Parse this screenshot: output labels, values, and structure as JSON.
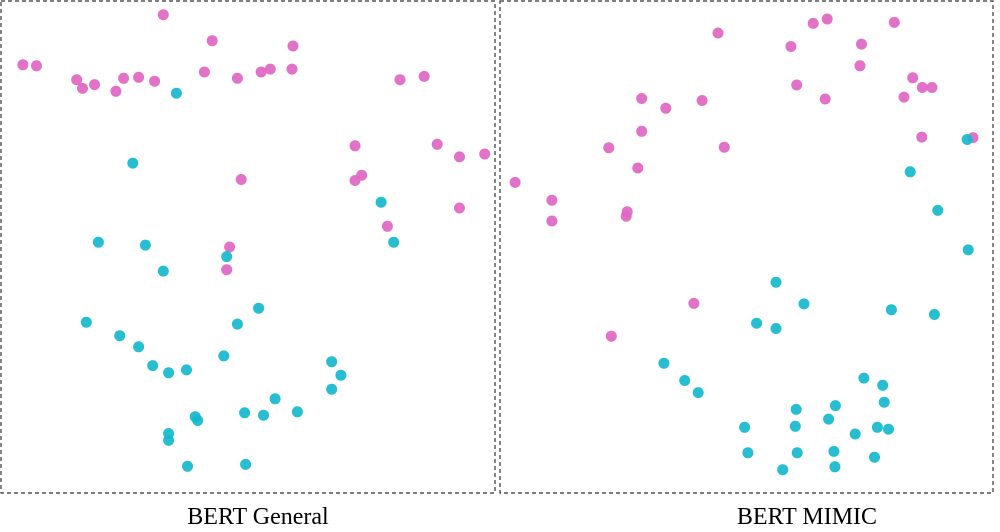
{
  "colors": {
    "clinical": "#e066c2",
    "non_clinical": "#14b9cc"
  },
  "chart_data": [
    {
      "type": "scatter",
      "title": "BERT General",
      "xlabel": "",
      "ylabel": "",
      "grid": false,
      "legend": "none",
      "xlim": [
        0,
        100
      ],
      "ylim": [
        0,
        100
      ],
      "series": [
        {
          "color": "#e066c2",
          "points": [
            [
              3.5,
              87.8
            ],
            [
              6.3,
              87.6
            ],
            [
              14.6,
              84.7
            ],
            [
              15.8,
              82.9
            ],
            [
              18.3,
              83.7
            ],
            [
              22.7,
              82.3
            ],
            [
              24.3,
              85.0
            ],
            [
              27.4,
              85.2
            ],
            [
              30.7,
              84.4
            ],
            [
              32.5,
              98.2
            ],
            [
              42.6,
              92.8
            ],
            [
              41.0,
              86.3
            ],
            [
              47.8,
              85.0
            ],
            [
              52.7,
              86.3
            ],
            [
              54.6,
              86.9
            ],
            [
              59.1,
              86.9
            ],
            [
              59.3,
              91.7
            ],
            [
              72.1,
              71.0
            ],
            [
              73.5,
              64.9
            ],
            [
              72.1,
              63.8
            ],
            [
              81.4,
              84.7
            ],
            [
              86.4,
              85.4
            ],
            [
              89.1,
              71.3
            ],
            [
              93.7,
              68.7
            ],
            [
              98.9,
              69.3
            ],
            [
              93.7,
              58.1
            ],
            [
              78.8,
              54.3
            ],
            [
              48.6,
              64.0
            ],
            [
              46.2,
              50.0
            ],
            [
              45.6,
              45.3
            ]
          ]
        },
        {
          "color": "#14b9cc",
          "points": [
            [
              35.2,
              81.9
            ],
            [
              26.2,
              67.4
            ],
            [
              19.1,
              51.0
            ],
            [
              28.8,
              50.4
            ],
            [
              32.5,
              45.0
            ],
            [
              45.6,
              48.0
            ],
            [
              80.1,
              51.0
            ],
            [
              77.5,
              59.3
            ],
            [
              16.6,
              34.4
            ],
            [
              23.5,
              31.6
            ],
            [
              27.4,
              29.3
            ],
            [
              30.3,
              25.4
            ],
            [
              33.6,
              23.9
            ],
            [
              37.3,
              24.5
            ],
            [
              52.2,
              37.3
            ],
            [
              47.8,
              34.0
            ],
            [
              45.0,
              27.4
            ],
            [
              33.6,
              11.3
            ],
            [
              33.6,
              9.9
            ],
            [
              39.1,
              14.8
            ],
            [
              39.6,
              14.0
            ],
            [
              49.3,
              15.6
            ],
            [
              53.2,
              15.1
            ],
            [
              55.6,
              18.5
            ],
            [
              60.2,
              15.8
            ],
            [
              67.3,
              26.2
            ],
            [
              69.2,
              23.4
            ],
            [
              67.3,
              20.5
            ],
            [
              37.5,
              4.5
            ],
            [
              49.5,
              4.9
            ]
          ]
        }
      ]
    },
    {
      "type": "scatter",
      "title": "BERT MIMIC",
      "xlabel": "",
      "ylabel": "",
      "grid": false,
      "legend": "none",
      "xlim": [
        0,
        100
      ],
      "ylim": [
        0,
        100
      ],
      "series": [
        {
          "color": "#e066c2",
          "points": [
            [
              44.1,
              94.4
            ],
            [
              59.2,
              91.6
            ],
            [
              63.8,
              96.4
            ],
            [
              66.7,
              97.3
            ],
            [
              73.8,
              92.1
            ],
            [
              80.6,
              96.6
            ],
            [
              60.4,
              83.6
            ],
            [
              73.5,
              87.6
            ],
            [
              66.3,
              80.7
            ],
            [
              82.6,
              81.1
            ],
            [
              84.4,
              85.1
            ],
            [
              86.4,
              83.1
            ],
            [
              88.4,
              83.1
            ],
            [
              86.3,
              72.8
            ],
            [
              96.9,
              72.7
            ],
            [
              28.3,
              80.8
            ],
            [
              33.3,
              78.8
            ],
            [
              40.8,
              80.4
            ],
            [
              28.3,
              74.0
            ],
            [
              21.5,
              70.6
            ],
            [
              45.4,
              70.7
            ],
            [
              27.5,
              66.4
            ],
            [
              2.1,
              63.4
            ],
            [
              9.7,
              59.7
            ],
            [
              9.7,
              55.4
            ],
            [
              25.1,
              56.4
            ],
            [
              25.3,
              57.3
            ],
            [
              39.1,
              38.3
            ],
            [
              22.0,
              31.5
            ]
          ]
        },
        {
          "color": "#14b9cc",
          "points": [
            [
              95.7,
              72.3
            ],
            [
              83.9,
              65.6
            ],
            [
              89.6,
              57.6
            ],
            [
              95.9,
              49.4
            ],
            [
              56.1,
              42.7
            ],
            [
              61.9,
              38.2
            ],
            [
              80.0,
              37.0
            ],
            [
              88.9,
              36.0
            ],
            [
              52.1,
              34.2
            ],
            [
              56.1,
              33.1
            ],
            [
              32.9,
              25.9
            ],
            [
              37.2,
              22.3
            ],
            [
              40.0,
              19.8
            ],
            [
              74.3,
              22.8
            ],
            [
              78.2,
              21.3
            ],
            [
              78.5,
              17.8
            ],
            [
              68.4,
              17.1
            ],
            [
              60.3,
              16.3
            ],
            [
              67.0,
              14.3
            ],
            [
              72.5,
              11.2
            ],
            [
              49.6,
              12.6
            ],
            [
              60.1,
              12.8
            ],
            [
              77.1,
              12.6
            ],
            [
              79.4,
              12.2
            ],
            [
              50.3,
              7.3
            ],
            [
              60.5,
              7.3
            ],
            [
              68.1,
              7.6
            ],
            [
              76.5,
              6.4
            ],
            [
              57.5,
              3.8
            ],
            [
              68.3,
              4.4
            ]
          ]
        }
      ]
    }
  ]
}
